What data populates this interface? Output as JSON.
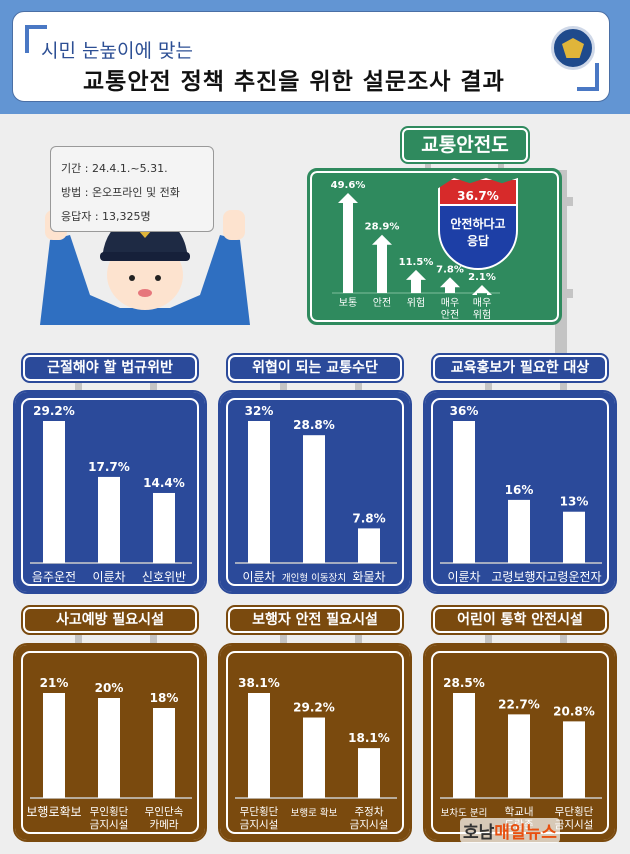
{
  "header": {
    "subtitle": "시민 눈높이에 맞는",
    "title": "교통안전 정책 추진을 위한 설문조사 결과"
  },
  "survey": {
    "period": "기간 : 24.4.1.~5.31.",
    "method": "방법 : 온오프라인 및 전화",
    "respondents": "응답자 : 13,325명"
  },
  "safety": {
    "title": "교통안전도",
    "badge_value": "36.7%",
    "badge_text": "안전하다고 응답",
    "categories": [
      "보통",
      "안전",
      "위험",
      "매우 안전",
      "매우 위험"
    ],
    "values": [
      49.6,
      28.9,
      11.5,
      7.8,
      2.1
    ]
  },
  "watermark": {
    "part1": "호남",
    "part2": "매일뉴스"
  },
  "chart_data": [
    {
      "type": "bar",
      "title": "교통안전도",
      "categories": [
        "보통",
        "안전",
        "위험",
        "매우 안전",
        "매우 위험"
      ],
      "values": [
        49.6,
        28.9,
        11.5,
        7.8,
        2.1
      ],
      "unit": "%"
    },
    {
      "type": "bar",
      "title": "근절해야 할 법규위반",
      "categories": [
        "음주운전",
        "이륜차",
        "신호위반"
      ],
      "values": [
        29.2,
        17.7,
        14.4
      ],
      "labels": [
        "29.2%",
        "17.7%",
        "14.4%"
      ],
      "color": "#2b4a9a"
    },
    {
      "type": "bar",
      "title": "위협이 되는 교통수단",
      "categories": [
        "이륜차",
        "개인형 이동장치",
        "화물차"
      ],
      "values": [
        32,
        28.8,
        7.8
      ],
      "labels": [
        "32%",
        "28.8%",
        "7.8%"
      ],
      "color": "#2b4a9a"
    },
    {
      "type": "bar",
      "title": "교육홍보가 필요한 대상",
      "categories": [
        "이륜차",
        "고령보행자",
        "고령운전자"
      ],
      "values": [
        36,
        16,
        13
      ],
      "labels": [
        "36%",
        "16%",
        "13%"
      ],
      "color": "#2b4a9a"
    },
    {
      "type": "bar",
      "title": "사고예방 필요시설",
      "categories": [
        "보행로확보",
        "무인횡단 금지시설",
        "무인단속 카메라"
      ],
      "values": [
        21,
        20,
        18
      ],
      "labels": [
        "21%",
        "20%",
        "18%"
      ],
      "color": "#7a4a0e"
    },
    {
      "type": "bar",
      "title": "보행자 안전 필요시설",
      "categories": [
        "무단횡단 금지시설",
        "보행로 확보",
        "주정차 금지시설"
      ],
      "values": [
        38.1,
        29.2,
        18.1
      ],
      "labels": [
        "38.1%",
        "29.2%",
        "18.1%"
      ],
      "color": "#7a4a0e"
    },
    {
      "type": "bar",
      "title": "어린이 통학 안전시설",
      "categories": [
        "보차도 분리",
        "학교내 드랍존",
        "무단횡단 금지시설"
      ],
      "values": [
        28.5,
        22.7,
        20.8
      ],
      "labels": [
        "28.5%",
        "22.7%",
        "20.8%"
      ],
      "color": "#7a4a0e"
    }
  ]
}
